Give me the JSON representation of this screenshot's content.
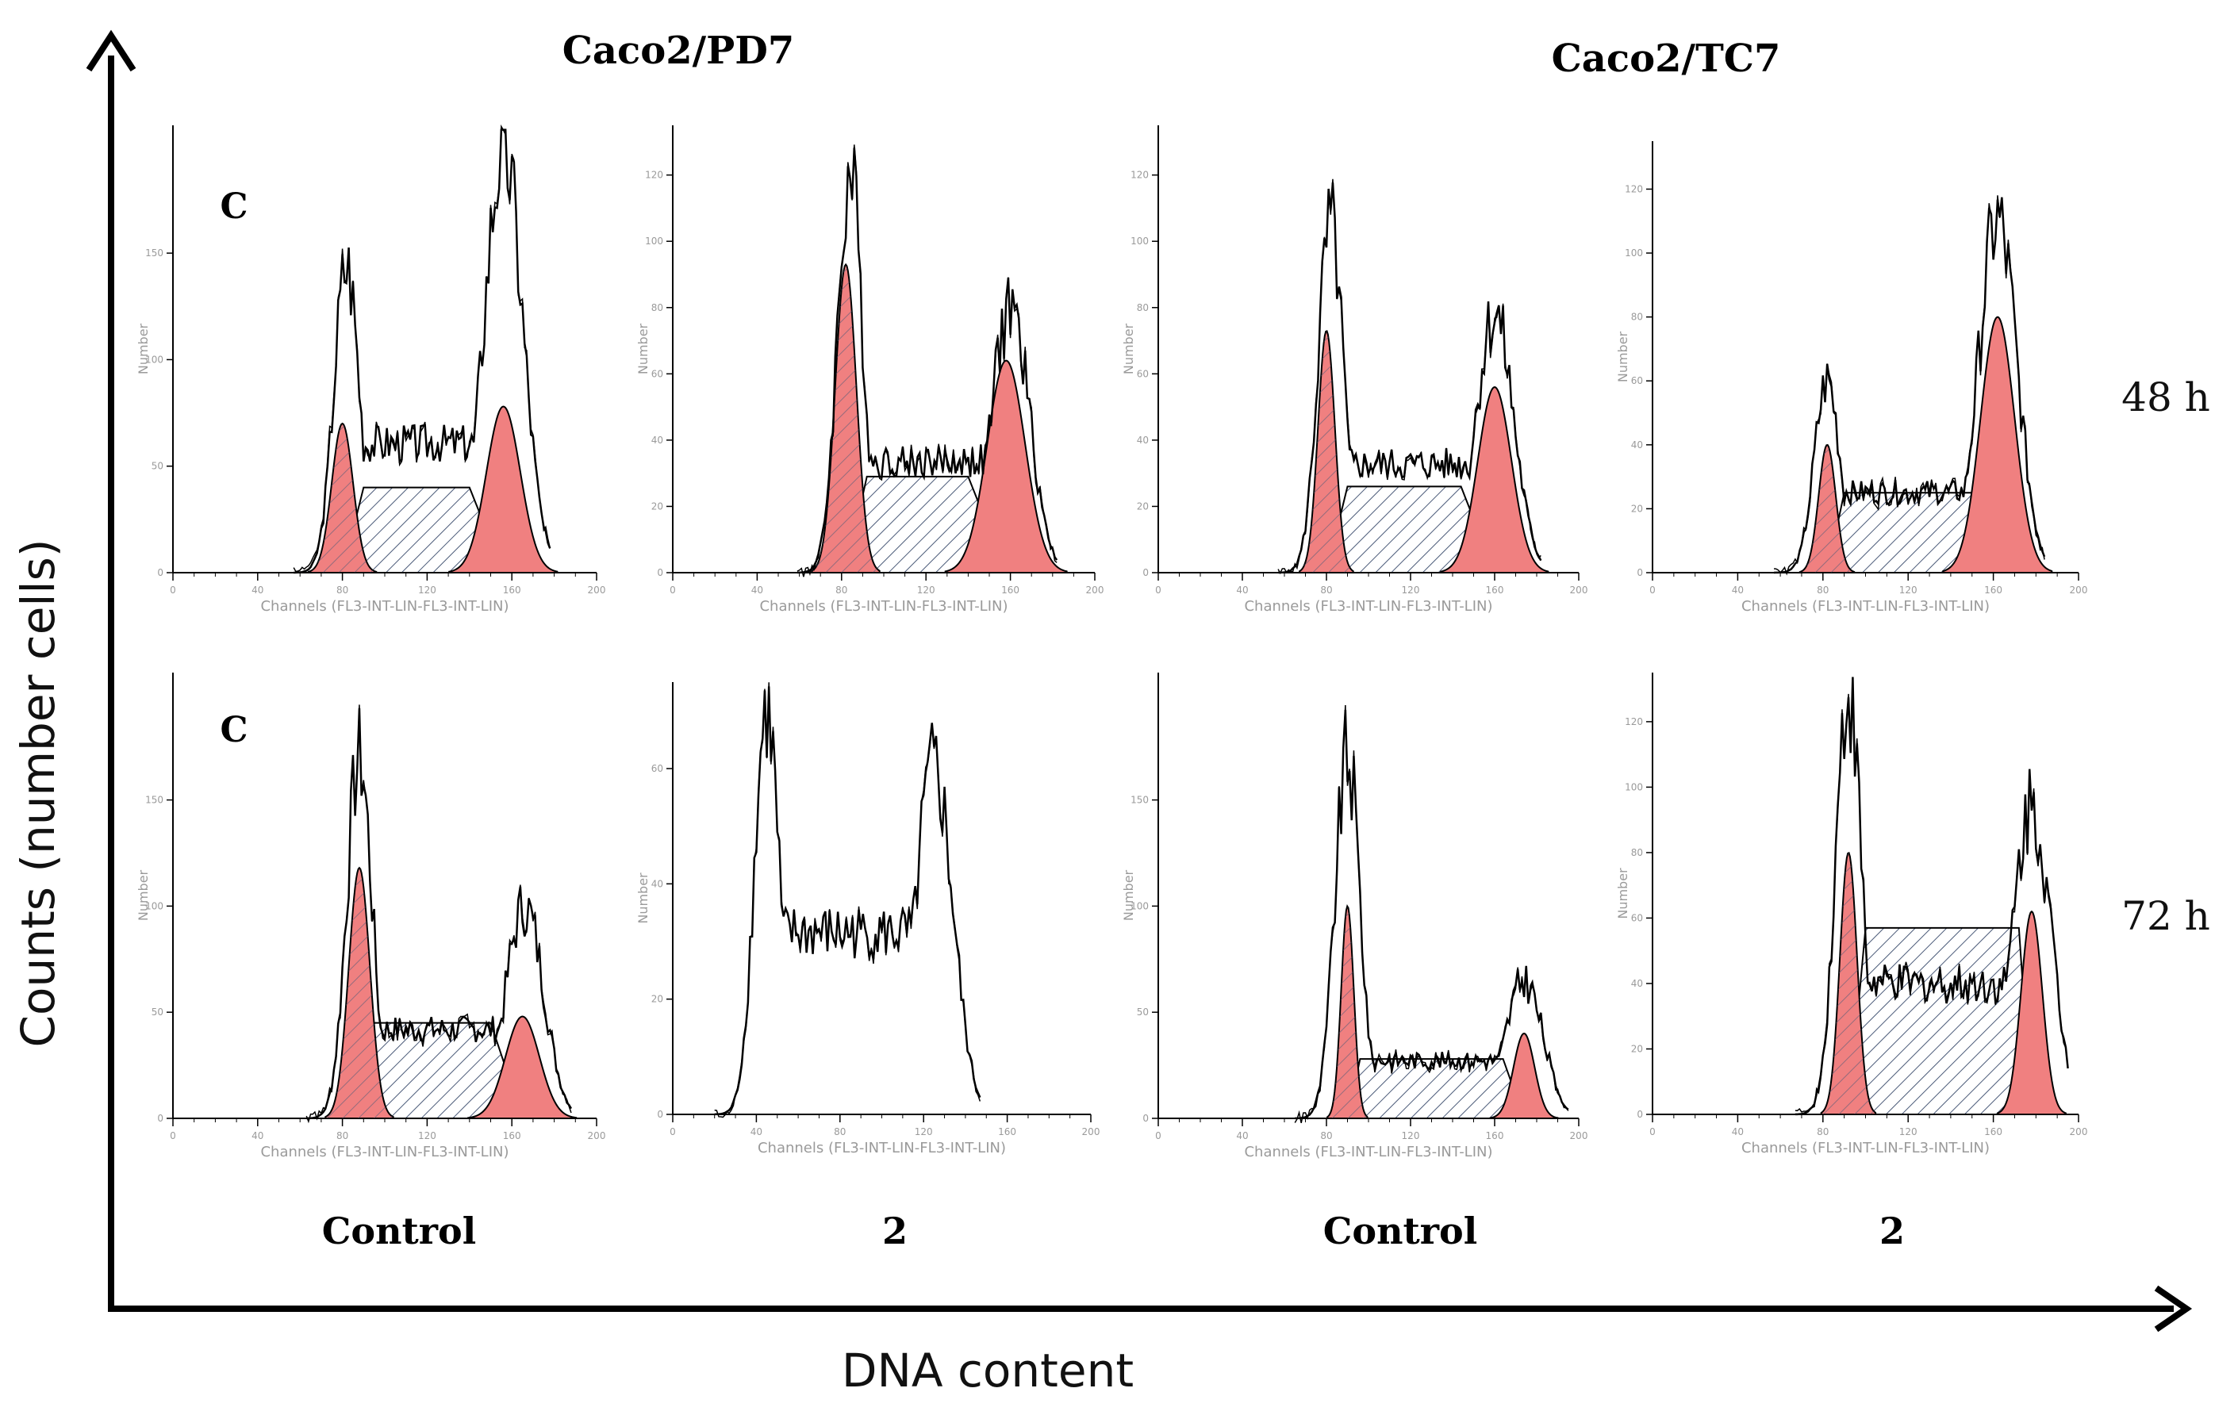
{
  "figure": {
    "y_axis_label": "Counts (number cells)",
    "x_axis_label": "DNA content",
    "column_groups": [
      "Caco2/PD7",
      "Caco2/TC7"
    ],
    "column_labels": [
      "Control",
      "2",
      "Control",
      "2"
    ],
    "row_labels": [
      "48 h",
      "72 h"
    ],
    "panel_letter": "C"
  },
  "chart_data": [
    {
      "type": "area",
      "panel": "PD7 Control 48 h",
      "cell_line": "Caco2/PD7",
      "treatment": "Control",
      "time": "48 h",
      "xlabel": "Channels (FL3-INT-LIN-FL3-INT-LIN)",
      "ylabel": "Number",
      "xlim": [
        0,
        200
      ],
      "x_ticks": [
        0,
        40,
        80,
        120,
        160,
        200
      ],
      "y_ticks": [
        0,
        50,
        100,
        150
      ],
      "ylim": [
        0,
        210
      ],
      "fit": {
        "g1": {
          "center": 80,
          "sigma": 5,
          "height": 70
        },
        "s_phase": {
          "start": 90,
          "end": 140,
          "height": 40
        },
        "g2": {
          "center": 156,
          "sigma": 8,
          "height": 78
        }
      },
      "histogram_peaks": [
        {
          "x": 82,
          "y": 145
        },
        {
          "x": 156,
          "y": 200
        }
      ]
    },
    {
      "type": "area",
      "panel": "PD7 2 48 h",
      "cell_line": "Caco2/PD7",
      "treatment": "2",
      "time": "48 h",
      "xlabel": "Channels (FL3-INT-LIN-FL3-INT-LIN)",
      "ylabel": "Number",
      "xlim": [
        0,
        200
      ],
      "x_ticks": [
        0,
        40,
        80,
        120,
        160,
        200
      ],
      "y_ticks": [
        0,
        20,
        40,
        60,
        80,
        100,
        120
      ],
      "ylim": [
        0,
        135
      ],
      "fit": {
        "g1": {
          "center": 82,
          "sigma": 5,
          "height": 93
        },
        "s_phase": {
          "start": 92,
          "end": 140,
          "height": 29
        },
        "g2": {
          "center": 158,
          "sigma": 9,
          "height": 64
        }
      },
      "histogram_peaks": [
        {
          "x": 84,
          "y": 120
        },
        {
          "x": 160,
          "y": 80
        }
      ]
    },
    {
      "type": "area",
      "panel": "TC7 Control 48 h",
      "cell_line": "Caco2/TC7",
      "treatment": "Control",
      "time": "48 h",
      "xlabel": "Channels (FL3-INT-LIN-FL3-INT-LIN)",
      "ylabel": "Number",
      "xlim": [
        0,
        200
      ],
      "x_ticks": [
        0,
        40,
        80,
        120,
        160,
        200
      ],
      "y_ticks": [
        0,
        20,
        40,
        60,
        80,
        100,
        120
      ],
      "ylim": [
        0,
        135
      ],
      "fit": {
        "g1": {
          "center": 80,
          "sigma": 4,
          "height": 73
        },
        "s_phase": {
          "start": 90,
          "end": 144,
          "height": 26
        },
        "g2": {
          "center": 160,
          "sigma": 8,
          "height": 56
        }
      },
      "histogram_peaks": [
        {
          "x": 82,
          "y": 105
        },
        {
          "x": 160,
          "y": 78
        }
      ]
    },
    {
      "type": "area",
      "panel": "TC7 2 48 h",
      "cell_line": "Caco2/TC7",
      "treatment": "2",
      "time": "48 h",
      "xlabel": "Channels (FL3-INT-LIN-FL3-INT-LIN)",
      "ylabel": "Number",
      "xlim": [
        0,
        200
      ],
      "x_ticks": [
        0,
        40,
        80,
        120,
        160,
        200
      ],
      "y_ticks": [
        0,
        20,
        40,
        60,
        80,
        100,
        120
      ],
      "ylim": [
        0,
        135
      ],
      "fit": {
        "g1": {
          "center": 82,
          "sigma": 4,
          "height": 40
        },
        "s_phase": {
          "start": 90,
          "end": 150,
          "height": 25
        },
        "g2": {
          "center": 162,
          "sigma": 8,
          "height": 80
        }
      },
      "histogram_peaks": [
        {
          "x": 82,
          "y": 60
        },
        {
          "x": 162,
          "y": 110
        }
      ]
    },
    {
      "type": "area",
      "panel": "PD7 Control 72 h",
      "cell_line": "Caco2/PD7",
      "treatment": "Control",
      "time": "72 h",
      "xlabel": "Channels (FL3-INT-LIN-FL3-INT-LIN)",
      "ylabel": "Number",
      "xlim": [
        0,
        200
      ],
      "x_ticks": [
        0,
        40,
        80,
        120,
        160,
        200
      ],
      "y_ticks": [
        0,
        50,
        100,
        150
      ],
      "ylim": [
        0,
        210
      ],
      "fit": {
        "g1": {
          "center": 88,
          "sigma": 5,
          "height": 118
        },
        "s_phase": {
          "start": 95,
          "end": 150,
          "height": 45
        },
        "g2": {
          "center": 165,
          "sigma": 8,
          "height": 48
        }
      },
      "histogram_peaks": [
        {
          "x": 88,
          "y": 170
        },
        {
          "x": 166,
          "y": 100
        }
      ]
    },
    {
      "type": "line",
      "panel": "PD7 2 72 h",
      "cell_line": "Caco2/PD7",
      "treatment": "2",
      "time": "72 h",
      "xlabel": "Channels (FL3-INT-LIN-FL3-INT-LIN)",
      "ylabel": "Number",
      "xlim": [
        0,
        200
      ],
      "x_ticks": [
        0,
        40,
        80,
        120,
        160,
        200
      ],
      "y_ticks": [
        0,
        20,
        40,
        60
      ],
      "ylim": [
        0,
        75
      ],
      "histogram_peaks": [
        {
          "x": 45,
          "y": 70
        },
        {
          "x": 125,
          "y": 60
        }
      ]
    },
    {
      "type": "area",
      "panel": "TC7 Control 72 h",
      "cell_line": "Caco2/TC7",
      "treatment": "Control",
      "time": "72 h",
      "xlabel": "Channels (FL3-INT-LIN-FL3-INT-LIN)",
      "ylabel": "Number",
      "xlim": [
        0,
        200
      ],
      "x_ticks": [
        0,
        40,
        80,
        120,
        160,
        200
      ],
      "y_ticks": [
        0,
        50,
        100,
        150
      ],
      "ylim": [
        0,
        210
      ],
      "fit": {
        "g1": {
          "center": 90,
          "sigma": 3,
          "height": 100
        },
        "s_phase": {
          "start": 96,
          "end": 164,
          "height": 28
        },
        "g2": {
          "center": 174,
          "sigma": 5,
          "height": 40
        }
      },
      "histogram_peaks": [
        {
          "x": 90,
          "y": 170
        },
        {
          "x": 174,
          "y": 65
        }
      ]
    },
    {
      "type": "area",
      "panel": "TC7 2 72 h",
      "cell_line": "Caco2/TC7",
      "treatment": "2",
      "time": "72 h",
      "xlabel": "Channels (FL3-INT-LIN-FL3-INT-LIN)",
      "ylabel": "Number",
      "xlim": [
        0,
        200
      ],
      "x_ticks": [
        0,
        40,
        80,
        120,
        160,
        200
      ],
      "y_ticks": [
        0,
        20,
        40,
        60,
        80,
        100,
        120
      ],
      "ylim": [
        0,
        135
      ],
      "fit": {
        "g1": {
          "center": 92,
          "sigma": 4,
          "height": 80
        },
        "s_phase": {
          "start": 100,
          "end": 172,
          "height": 57
        },
        "g2": {
          "center": 178,
          "sigma": 5,
          "height": 62
        }
      },
      "histogram_peaks": [
        {
          "x": 92,
          "y": 130
        },
        {
          "x": 178,
          "y": 95
        }
      ]
    }
  ],
  "colors": {
    "fit_fill": "#f08080",
    "outline": "#000000",
    "tick_text": "#9a9a9a",
    "hatch": "#4a5a78"
  }
}
